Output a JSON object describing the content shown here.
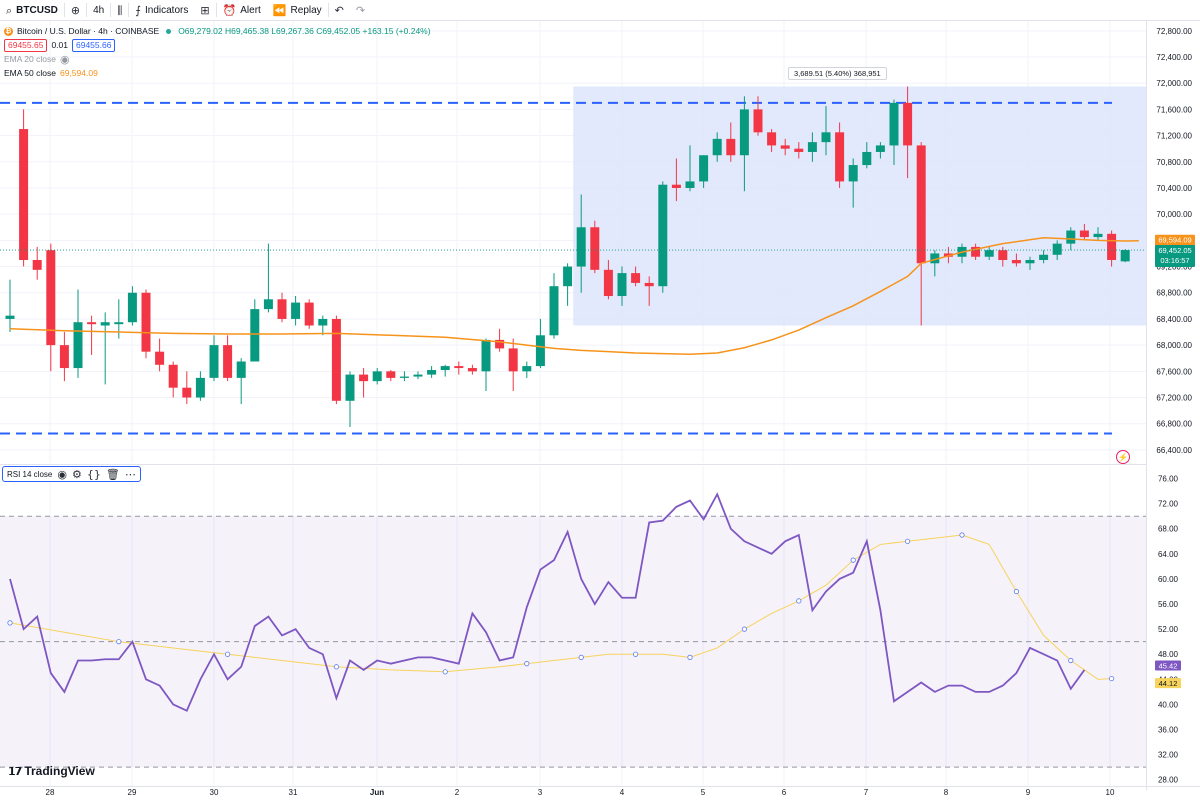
{
  "toolbar": {
    "symbol": "BTCUSD",
    "interval": "4h",
    "indicators_label": "Indicators",
    "alert_label": "Alert",
    "replay_label": "Replay"
  },
  "legend": {
    "title": "Bitcoin / U.S. Dollar · 4h · COINBASE",
    "ohlc": "O69,279.02 H69,465.38 L69,267.36 C69,452.05 +163.15 (+0.24%)",
    "sell_price": "69455.65",
    "spread": "0.01",
    "buy_price": "69455.66",
    "ema20_label": "EMA 20 close",
    "ema50_label": "EMA 50 close",
    "ema50_value": "69,594.09"
  },
  "measure_tooltip": "3,689.51 (5.40%) 368,951",
  "rsi_label": "RSI 14 close",
  "brand": "TradingView",
  "colors": {
    "up": "#089981",
    "down": "#f23645",
    "ema50": "#f7931a",
    "rsi": "#7e57c2",
    "rsi_ma": "#f7d35c",
    "level": "#2962ff",
    "range_fill": "#dde5fb"
  },
  "chart_data": [
    {
      "type": "candlestick",
      "symbol": "BTCUSD",
      "timeframe": "4h",
      "x_tick_labels": [
        "28",
        "29",
        "30",
        "31",
        "Jun",
        "2",
        "3",
        "4",
        "5",
        "6",
        "7",
        "8",
        "9",
        "10"
      ],
      "y_ticks": [
        66400,
        66800,
        67200,
        67600,
        68000,
        68400,
        68800,
        69200,
        69600,
        70000,
        70400,
        70800,
        71200,
        71600,
        72000,
        72400,
        72800
      ],
      "ylim": [
        66200,
        72950
      ],
      "candles": [
        {
          "o": 68400,
          "h": 69000,
          "l": 68200,
          "c": 68450
        },
        {
          "o": 71300,
          "h": 71600,
          "l": 69200,
          "c": 69300
        },
        {
          "o": 69300,
          "h": 69500,
          "l": 69000,
          "c": 69150
        },
        {
          "o": 69450,
          "h": 69550,
          "l": 67600,
          "c": 68000
        },
        {
          "o": 68000,
          "h": 68200,
          "l": 67450,
          "c": 67650
        },
        {
          "o": 67650,
          "h": 68850,
          "l": 67500,
          "c": 68350
        },
        {
          "o": 68350,
          "h": 68450,
          "l": 67850,
          "c": 68320
        },
        {
          "o": 68300,
          "h": 68500,
          "l": 67400,
          "c": 68350
        },
        {
          "o": 68320,
          "h": 68700,
          "l": 68100,
          "c": 68350
        },
        {
          "o": 68350,
          "h": 68900,
          "l": 68300,
          "c": 68800
        },
        {
          "o": 68800,
          "h": 68850,
          "l": 67800,
          "c": 67900
        },
        {
          "o": 67900,
          "h": 68100,
          "l": 67600,
          "c": 67700
        },
        {
          "o": 67700,
          "h": 67750,
          "l": 67200,
          "c": 67350
        },
        {
          "o": 67350,
          "h": 67600,
          "l": 67100,
          "c": 67200
        },
        {
          "o": 67200,
          "h": 67600,
          "l": 67150,
          "c": 67500
        },
        {
          "o": 67500,
          "h": 68150,
          "l": 67450,
          "c": 68000
        },
        {
          "o": 68000,
          "h": 68150,
          "l": 67450,
          "c": 67500
        },
        {
          "o": 67500,
          "h": 67800,
          "l": 67100,
          "c": 67750
        },
        {
          "o": 67750,
          "h": 68700,
          "l": 67750,
          "c": 68550
        },
        {
          "o": 68550,
          "h": 69550,
          "l": 68500,
          "c": 68700
        },
        {
          "o": 68700,
          "h": 68800,
          "l": 68350,
          "c": 68400
        },
        {
          "o": 68400,
          "h": 68750,
          "l": 68300,
          "c": 68650
        },
        {
          "o": 68650,
          "h": 68700,
          "l": 68250,
          "c": 68300
        },
        {
          "o": 68300,
          "h": 68450,
          "l": 68150,
          "c": 68400
        },
        {
          "o": 68400,
          "h": 68450,
          "l": 67100,
          "c": 67150
        },
        {
          "o": 67150,
          "h": 67600,
          "l": 66750,
          "c": 67550
        },
        {
          "o": 67550,
          "h": 67650,
          "l": 67200,
          "c": 67450
        },
        {
          "o": 67450,
          "h": 67650,
          "l": 67400,
          "c": 67600
        },
        {
          "o": 67600,
          "h": 67620,
          "l": 67450,
          "c": 67500
        },
        {
          "o": 67500,
          "h": 67600,
          "l": 67450,
          "c": 67520
        },
        {
          "o": 67520,
          "h": 67600,
          "l": 67480,
          "c": 67550
        },
        {
          "o": 67550,
          "h": 67680,
          "l": 67500,
          "c": 67620
        },
        {
          "o": 67620,
          "h": 67700,
          "l": 67520,
          "c": 67680
        },
        {
          "o": 67680,
          "h": 67750,
          "l": 67550,
          "c": 67650
        },
        {
          "o": 67650,
          "h": 67700,
          "l": 67550,
          "c": 67600
        },
        {
          "o": 67600,
          "h": 68100,
          "l": 67300,
          "c": 68080
        },
        {
          "o": 68080,
          "h": 68250,
          "l": 67900,
          "c": 67950
        },
        {
          "o": 67950,
          "h": 68100,
          "l": 67300,
          "c": 67600
        },
        {
          "o": 67600,
          "h": 67750,
          "l": 67500,
          "c": 67680
        },
        {
          "o": 67680,
          "h": 68400,
          "l": 67650,
          "c": 68150
        },
        {
          "o": 68150,
          "h": 69100,
          "l": 68100,
          "c": 68900
        },
        {
          "o": 68900,
          "h": 69250,
          "l": 68600,
          "c": 69200
        },
        {
          "o": 69200,
          "h": 70300,
          "l": 68800,
          "c": 69800
        },
        {
          "o": 69800,
          "h": 69900,
          "l": 69100,
          "c": 69150
        },
        {
          "o": 69150,
          "h": 69300,
          "l": 68700,
          "c": 68750
        },
        {
          "o": 68750,
          "h": 69200,
          "l": 68600,
          "c": 69100
        },
        {
          "o": 69100,
          "h": 69200,
          "l": 68900,
          "c": 68950
        },
        {
          "o": 68950,
          "h": 69050,
          "l": 68600,
          "c": 68900
        },
        {
          "o": 68900,
          "h": 70500,
          "l": 68800,
          "c": 70450
        },
        {
          "o": 70450,
          "h": 70850,
          "l": 70200,
          "c": 70400
        },
        {
          "o": 70400,
          "h": 71050,
          "l": 70350,
          "c": 70500
        },
        {
          "o": 70500,
          "h": 70900,
          "l": 70400,
          "c": 70900
        },
        {
          "o": 70900,
          "h": 71250,
          "l": 70800,
          "c": 71150
        },
        {
          "o": 71150,
          "h": 71400,
          "l": 70800,
          "c": 70900
        },
        {
          "o": 70900,
          "h": 71800,
          "l": 70350,
          "c": 71600
        },
        {
          "o": 71600,
          "h": 71800,
          "l": 71200,
          "c": 71250
        },
        {
          "o": 71250,
          "h": 71300,
          "l": 70950,
          "c": 71050
        },
        {
          "o": 71050,
          "h": 71150,
          "l": 70900,
          "c": 71000
        },
        {
          "o": 71000,
          "h": 71100,
          "l": 70850,
          "c": 70950
        },
        {
          "o": 70950,
          "h": 71250,
          "l": 70800,
          "c": 71100
        },
        {
          "o": 71100,
          "h": 71650,
          "l": 70900,
          "c": 71250
        },
        {
          "o": 71250,
          "h": 71400,
          "l": 70400,
          "c": 70500
        },
        {
          "o": 70500,
          "h": 70850,
          "l": 70100,
          "c": 70750
        },
        {
          "o": 70750,
          "h": 71100,
          "l": 70700,
          "c": 70950
        },
        {
          "o": 70950,
          "h": 71100,
          "l": 70850,
          "c": 71050
        },
        {
          "o": 71050,
          "h": 71750,
          "l": 70750,
          "c": 71700
        },
        {
          "o": 71700,
          "h": 71950,
          "l": 70550,
          "c": 71050
        },
        {
          "o": 71050,
          "h": 71100,
          "l": 68300,
          "c": 69250
        },
        {
          "o": 69250,
          "h": 69450,
          "l": 69050,
          "c": 69400
        },
        {
          "o": 69400,
          "h": 69500,
          "l": 69250,
          "c": 69350
        },
        {
          "o": 69350,
          "h": 69550,
          "l": 69250,
          "c": 69500
        },
        {
          "o": 69500,
          "h": 69550,
          "l": 69300,
          "c": 69350
        },
        {
          "o": 69350,
          "h": 69500,
          "l": 69300,
          "c": 69450
        },
        {
          "o": 69450,
          "h": 69500,
          "l": 69200,
          "c": 69300
        },
        {
          "o": 69300,
          "h": 69400,
          "l": 69200,
          "c": 69250
        },
        {
          "o": 69250,
          "h": 69350,
          "l": 69150,
          "c": 69300
        },
        {
          "o": 69300,
          "h": 69450,
          "l": 69250,
          "c": 69380
        },
        {
          "o": 69380,
          "h": 69600,
          "l": 69300,
          "c": 69550
        },
        {
          "o": 69550,
          "h": 69800,
          "l": 69450,
          "c": 69750
        },
        {
          "o": 69750,
          "h": 69850,
          "l": 69600,
          "c": 69650
        },
        {
          "o": 69650,
          "h": 69800,
          "l": 69600,
          "c": 69700
        },
        {
          "o": 69700,
          "h": 69750,
          "l": 69200,
          "c": 69300
        },
        {
          "o": 69279.02,
          "h": 69465.38,
          "l": 69267.36,
          "c": 69452.05
        }
      ],
      "ema50": [
        68250,
        68220,
        68200,
        68180,
        68170,
        68170,
        68180,
        68150,
        68120,
        68050,
        68000,
        67950,
        67920,
        67900,
        67880,
        67870,
        67860,
        67880,
        67960,
        68080,
        68230,
        68420,
        68600,
        68820,
        69050,
        69250,
        69420,
        69550,
        69640,
        69620,
        69600,
        69590,
        69594.09
      ],
      "ema50_x_index": [
        0,
        4,
        8,
        12,
        16,
        20,
        24,
        28,
        32,
        36,
        38,
        40,
        42,
        44,
        46,
        48,
        50,
        52,
        54,
        56,
        58,
        60,
        62,
        64,
        66,
        67,
        70,
        73,
        76,
        78,
        80,
        82,
        83
      ],
      "horizontal_levels": [
        71700,
        66650
      ],
      "range_box": {
        "from_index": 42,
        "to_index": 83,
        "top": 71950,
        "bottom": 68300
      },
      "last_price": "69,452.05",
      "countdown": "03:16:57",
      "ema50_last": "69,594.09"
    },
    {
      "type": "line",
      "name": "RSI 14 close",
      "y_ticks": [
        28,
        32,
        36,
        40,
        44,
        48,
        52,
        56,
        60,
        64,
        68,
        72,
        76
      ],
      "ylim": [
        27,
        78
      ],
      "levels": [
        70,
        50,
        30
      ],
      "rsi": [
        60,
        52,
        54,
        45,
        42,
        47,
        47,
        47.2,
        47.2,
        50,
        44,
        43,
        40,
        39,
        44,
        48,
        44,
        46,
        52.5,
        54,
        51,
        52,
        49,
        48,
        41,
        47,
        45.5,
        47,
        46.5,
        47,
        47.5,
        47.5,
        47,
        46.5,
        54.5,
        51.5,
        47,
        47.5,
        55.5,
        61.5,
        63,
        67.5,
        60,
        56,
        59.5,
        57,
        57,
        69,
        69.3,
        71.5,
        72.5,
        69.5,
        73.5,
        68,
        66,
        65,
        64,
        66,
        67,
        55,
        58,
        60,
        61,
        66,
        55,
        40.5,
        42,
        43.5,
        42,
        43,
        43,
        42,
        42,
        43,
        45,
        49,
        48,
        47,
        42.5,
        45.5
      ],
      "rsi_ma": [
        53,
        51.5,
        50,
        49,
        48,
        47,
        46,
        45.5,
        45.2,
        46,
        46.5,
        47,
        47.5,
        48,
        48,
        48,
        47.5,
        49,
        52,
        54.5,
        56.5,
        59,
        63,
        65.5,
        66,
        66.5,
        67,
        65.5,
        58,
        51,
        47,
        44,
        44.12
      ],
      "rsi_ma_x_index": [
        0,
        4,
        8,
        12,
        16,
        20,
        24,
        28,
        32,
        36,
        38,
        40,
        42,
        44,
        46,
        48,
        50,
        52,
        54,
        56,
        58,
        60,
        62,
        64,
        66,
        68,
        70,
        72,
        74,
        76,
        78,
        80,
        81
      ],
      "rsi_last": "45.42",
      "rsi_ma_last": "44.12"
    }
  ]
}
